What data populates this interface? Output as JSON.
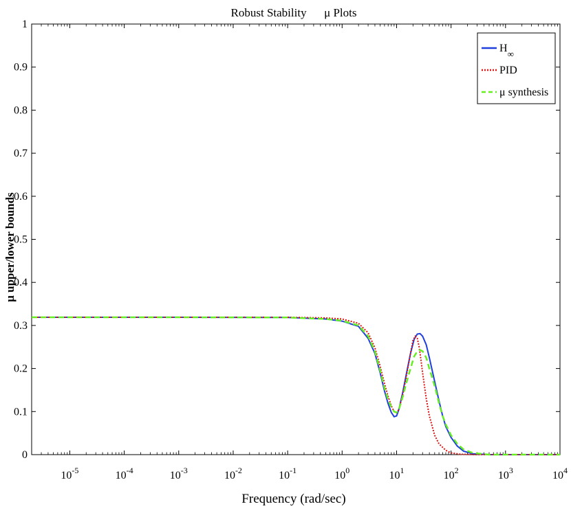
{
  "chart_data": {
    "type": "line",
    "title": "Robust Stability      μ Plots",
    "xlabel": "Frequency (rad/sec)",
    "ylabel": "μ upper/lower bounds",
    "xscale": "log",
    "xlim_exp": [
      -5.7,
      4
    ],
    "ylim": [
      0,
      1
    ],
    "x_ticks_exp": [
      -5,
      -4,
      -3,
      -2,
      -1,
      0,
      1,
      2,
      3,
      4
    ],
    "x_tick_base": "10",
    "y_ticks": [
      "0",
      "0.1",
      "0.2",
      "0.3",
      "0.4",
      "0.5",
      "0.6",
      "0.7",
      "0.8",
      "0.9",
      "1"
    ],
    "legend_position": "top-right",
    "series": [
      {
        "name": "H",
        "name_sub": "∞",
        "color": "#1f3fdc",
        "style": "solid",
        "points": [
          [
            2e-06,
            0.319
          ],
          [
            0.001,
            0.319
          ],
          [
            0.1,
            0.3185
          ],
          [
            0.5,
            0.315
          ],
          [
            1,
            0.31
          ],
          [
            2,
            0.298
          ],
          [
            3,
            0.27
          ],
          [
            4,
            0.235
          ],
          [
            5,
            0.19
          ],
          [
            6,
            0.148
          ],
          [
            7,
            0.118
          ],
          [
            8,
            0.098
          ],
          [
            9,
            0.088
          ],
          [
            10,
            0.09
          ],
          [
            11,
            0.105
          ],
          [
            13,
            0.145
          ],
          [
            15,
            0.185
          ],
          [
            18,
            0.235
          ],
          [
            21,
            0.268
          ],
          [
            24,
            0.28
          ],
          [
            27,
            0.281
          ],
          [
            30,
            0.275
          ],
          [
            35,
            0.255
          ],
          [
            40,
            0.225
          ],
          [
            50,
            0.17
          ],
          [
            60,
            0.125
          ],
          [
            70,
            0.09
          ],
          [
            80,
            0.065
          ],
          [
            100,
            0.04
          ],
          [
            130,
            0.02
          ],
          [
            170,
            0.008
          ],
          [
            250,
            0.002
          ],
          [
            500,
            0
          ],
          [
            10000,
            0
          ]
        ]
      },
      {
        "name": "PID",
        "name_sub": "",
        "color": "#e01010",
        "style": "dotted",
        "points": [
          [
            2e-06,
            0.319
          ],
          [
            0.001,
            0.319
          ],
          [
            0.1,
            0.319
          ],
          [
            0.5,
            0.3175
          ],
          [
            1,
            0.315
          ],
          [
            2,
            0.305
          ],
          [
            3,
            0.283
          ],
          [
            4,
            0.248
          ],
          [
            5,
            0.205
          ],
          [
            6,
            0.165
          ],
          [
            7,
            0.135
          ],
          [
            8,
            0.113
          ],
          [
            9,
            0.1
          ],
          [
            10,
            0.097
          ],
          [
            11,
            0.105
          ],
          [
            13,
            0.14
          ],
          [
            15,
            0.18
          ],
          [
            18,
            0.235
          ],
          [
            20,
            0.265
          ],
          [
            22,
            0.275
          ],
          [
            24,
            0.27
          ],
          [
            26,
            0.25
          ],
          [
            28,
            0.22
          ],
          [
            30,
            0.19
          ],
          [
            35,
            0.13
          ],
          [
            40,
            0.09
          ],
          [
            50,
            0.045
          ],
          [
            60,
            0.025
          ],
          [
            80,
            0.01
          ],
          [
            100,
            0.004
          ],
          [
            150,
            0.001
          ],
          [
            300,
            0
          ],
          [
            10000,
            0
          ]
        ]
      },
      {
        "name": "μ synthesis",
        "name_sub": "",
        "color": "#66ee22",
        "style": "dashed",
        "points": [
          [
            2e-06,
            0.319
          ],
          [
            0.001,
            0.319
          ],
          [
            0.1,
            0.3185
          ],
          [
            0.5,
            0.315
          ],
          [
            1,
            0.311
          ],
          [
            2,
            0.3
          ],
          [
            3,
            0.275
          ],
          [
            4,
            0.24
          ],
          [
            5,
            0.195
          ],
          [
            6,
            0.155
          ],
          [
            7,
            0.127
          ],
          [
            8,
            0.11
          ],
          [
            9,
            0.1
          ],
          [
            10,
            0.098
          ],
          [
            11,
            0.105
          ],
          [
            13,
            0.135
          ],
          [
            15,
            0.165
          ],
          [
            18,
            0.2
          ],
          [
            21,
            0.228
          ],
          [
            24,
            0.24
          ],
          [
            27,
            0.243
          ],
          [
            30,
            0.24
          ],
          [
            35,
            0.225
          ],
          [
            40,
            0.2
          ],
          [
            50,
            0.16
          ],
          [
            60,
            0.12
          ],
          [
            70,
            0.09
          ],
          [
            80,
            0.07
          ],
          [
            100,
            0.045
          ],
          [
            130,
            0.025
          ],
          [
            170,
            0.012
          ],
          [
            250,
            0.004
          ],
          [
            500,
            0
          ],
          [
            10000,
            0
          ]
        ]
      }
    ]
  }
}
